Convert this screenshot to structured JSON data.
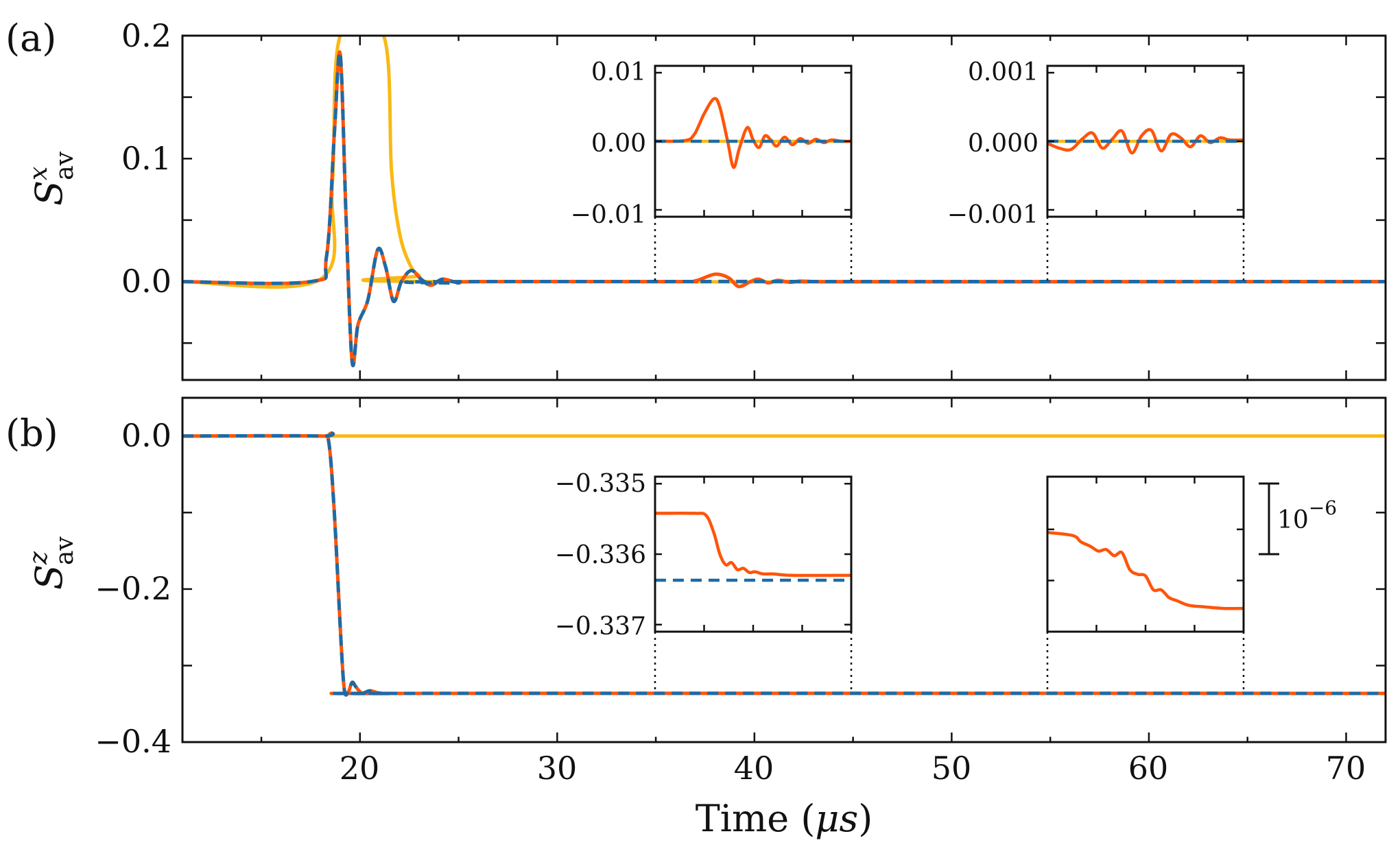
{
  "colors": {
    "yellow": "#F9B914",
    "orange": "#FF5409",
    "blue": "#1F6AA5",
    "axis": "#111111"
  },
  "x_axis": {
    "label_text": "Time (",
    "label_unit": "μs",
    "label_close": ")",
    "ticks": [
      "20",
      "30",
      "40",
      "50",
      "60",
      "70"
    ]
  },
  "panels": {
    "a": {
      "label": "(a)",
      "ylabel_base": "S",
      "ylabel_sup": "x",
      "ylabel_sub": "av",
      "yticks": [
        "0.2",
        "0.1",
        "0.0"
      ],
      "inset1_yticks": [
        "0.01",
        "0.00",
        "−0.01"
      ],
      "inset2_yticks": [
        "0.001",
        "0.000",
        "−0.001"
      ]
    },
    "b": {
      "label": "(b)",
      "ylabel_base": "S",
      "ylabel_sup": "z",
      "ylabel_sub": "av",
      "yticks": [
        "0.0",
        "−0.2",
        "−0.4"
      ],
      "inset1_yticks": [
        "−0.335",
        "−0.336",
        "−0.337"
      ],
      "scale_bar_base": "10",
      "scale_bar_exp": "−6"
    }
  },
  "chart_data": [
    {
      "panel": "a",
      "type": "line",
      "xlabel": "Time (μs)",
      "ylabel": "S^x_av",
      "xlim": [
        11,
        72
      ],
      "ylim": [
        -0.08,
        0.2
      ],
      "xticks": [
        20,
        30,
        40,
        50,
        60,
        70
      ],
      "yticks": [
        0.0,
        0.1,
        0.2
      ],
      "series": [
        {
          "color": "#F9B914",
          "style": "solid",
          "x": [
            11,
            18,
            18.6,
            19.0,
            21.2,
            21.6,
            22.0,
            22.5,
            23,
            24,
            72
          ],
          "y": [
            0,
            0.002,
            0.08,
            0.2,
            0.2,
            0.09,
            0.04,
            0.015,
            0.005,
            0,
            0
          ]
        },
        {
          "color": "#FF5409",
          "style": "solid",
          "x": [
            11,
            17.5,
            18.3,
            18.7,
            19.0,
            19.3,
            19.6,
            19.9,
            20.4,
            20.9,
            21.3,
            21.7,
            22.1,
            22.6,
            23.1,
            23.6,
            24.2,
            25.0,
            26,
            36,
            37,
            38,
            38.7,
            39.2,
            39.8,
            40.2,
            40.7,
            41.2,
            41.8,
            42.3,
            43,
            44,
            72
          ],
          "y": [
            0,
            0.0,
            0.02,
            0.12,
            0.185,
            0.05,
            -0.065,
            -0.035,
            -0.015,
            0.026,
            0.012,
            -0.016,
            0.0,
            0.009,
            0.002,
            -0.003,
            0.002,
            -0.001,
            0,
            0,
            0.0006,
            0.006,
            0.003,
            -0.004,
            0.0,
            0.002,
            -0.001,
            0.001,
            -0.0006,
            0.0004,
            0,
            0,
            0
          ]
        },
        {
          "color": "#1F6AA5",
          "style": "dashed",
          "x": [
            11,
            17.5,
            18.3,
            18.7,
            19.0,
            19.3,
            19.6,
            19.9,
            20.4,
            20.9,
            21.3,
            21.7,
            22.1,
            22.6,
            23.1,
            23.6,
            24.2,
            25.0,
            26,
            72
          ],
          "y": [
            0,
            0.0,
            0.02,
            0.12,
            0.185,
            0.05,
            -0.065,
            -0.035,
            -0.015,
            0.026,
            0.012,
            -0.016,
            0.0,
            0.009,
            0.002,
            -0.003,
            0.002,
            -0.001,
            0,
            0
          ]
        }
      ],
      "insets": [
        {
          "xlim": [
            35,
            45
          ],
          "ylim": [
            -0.011,
            0.011
          ],
          "yticks": [
            -0.01,
            0.0,
            0.01
          ],
          "series": [
            {
              "color": "#F9B914",
              "style": "solid",
              "x": [
                35,
                45
              ],
              "y": [
                0,
                0
              ]
            },
            {
              "color": "#FF5409",
              "style": "solid",
              "x": [
                35,
                36.5,
                37.0,
                37.5,
                38.0,
                38.3,
                38.7,
                39.0,
                39.3,
                39.7,
                40.0,
                40.3,
                40.6,
                40.9,
                41.2,
                41.6,
                42.0,
                42.4,
                42.8,
                43.2,
                43.6,
                44.0,
                44.5,
                45
              ],
              "y": [
                0,
                0.0001,
                0.001,
                0.004,
                0.0062,
                0.005,
                0.0,
                -0.0038,
                -0.001,
                0.002,
                0.0002,
                -0.0009,
                0.0008,
                0.0002,
                -0.0007,
                0.0006,
                -0.0005,
                0.0004,
                -0.0003,
                0.0003,
                -0.0002,
                0.0002,
                0.0,
                0.0
              ]
            },
            {
              "color": "#1F6AA5",
              "style": "dashed",
              "x": [
                35,
                45
              ],
              "y": [
                0,
                0
              ]
            }
          ]
        },
        {
          "xlim": [
            55,
            65
          ],
          "ylim": [
            -0.0011,
            0.0011
          ],
          "yticks": [
            -0.001,
            0.0,
            0.001
          ],
          "series": [
            {
              "color": "#F9B914",
              "style": "solid",
              "x": [
                55,
                65
              ],
              "y": [
                0,
                0
              ]
            },
            {
              "color": "#FF5409",
              "style": "solid",
              "x": [
                55,
                55.6,
                56.2,
                56.8,
                57.3,
                57.8,
                58.3,
                58.8,
                59.3,
                59.8,
                60.3,
                60.8,
                61.3,
                61.8,
                62.3,
                62.8,
                63.3,
                63.8,
                64.3,
                65
              ],
              "y": [
                -3e-05,
                -0.0001,
                -0.00012,
                4e-05,
                0.00012,
                -0.0001,
                3e-05,
                0.00015,
                -0.00017,
                8e-05,
                0.00016,
                -0.00014,
                0.0001,
                5e-05,
                -8e-05,
                8e-05,
                -2e-05,
                5e-05,
                2e-05,
                2e-05
              ]
            },
            {
              "color": "#1F6AA5",
              "style": "dashed",
              "x": [
                55,
                65
              ],
              "y": [
                0,
                0
              ]
            }
          ]
        }
      ]
    },
    {
      "panel": "b",
      "type": "line",
      "xlabel": "Time (μs)",
      "ylabel": "S^z_av",
      "xlim": [
        11,
        72
      ],
      "ylim": [
        -0.4,
        0.05
      ],
      "xticks": [
        20,
        30,
        40,
        50,
        60,
        70
      ],
      "yticks": [
        -0.4,
        -0.2,
        0.0
      ],
      "series": [
        {
          "color": "#F9B914",
          "style": "solid",
          "x": [
            11,
            72
          ],
          "y": [
            0,
            0
          ]
        },
        {
          "color": "#FF5409",
          "style": "solid",
          "x": [
            11,
            18.0,
            18.4,
            18.7,
            19.0,
            19.2,
            19.4,
            19.6,
            19.8,
            20.1,
            20.5,
            21.0,
            21.5,
            22.5,
            72
          ],
          "y": [
            0,
            0,
            -0.005,
            -0.1,
            -0.25,
            -0.33,
            -0.335,
            -0.322,
            -0.328,
            -0.336,
            -0.333,
            -0.336,
            -0.3365,
            -0.3363,
            -0.3363
          ]
        },
        {
          "color": "#1F6AA5",
          "style": "dashed",
          "x": [
            11,
            18.0,
            18.4,
            18.7,
            19.0,
            19.2,
            19.4,
            19.6,
            19.8,
            20.1,
            20.5,
            21.0,
            21.5,
            22.5,
            72
          ],
          "y": [
            0,
            0,
            -0.005,
            -0.1,
            -0.25,
            -0.33,
            -0.335,
            -0.322,
            -0.328,
            -0.336,
            -0.333,
            -0.336,
            -0.3365,
            -0.3363,
            -0.3363
          ]
        }
      ],
      "insets": [
        {
          "xlim": [
            35,
            45
          ],
          "ylim": [
            -0.3371,
            -0.3349
          ],
          "yticks": [
            -0.337,
            -0.336,
            -0.335
          ],
          "series": [
            {
              "color": "#FF5409",
              "style": "solid",
              "x": [
                35,
                37.0,
                37.6,
                38.0,
                38.3,
                38.6,
                38.9,
                39.2,
                39.5,
                39.8,
                40.1,
                40.5,
                41.0,
                42,
                45
              ],
              "y": [
                -0.33542,
                -0.33542,
                -0.33545,
                -0.3357,
                -0.336,
                -0.33615,
                -0.33612,
                -0.33622,
                -0.3362,
                -0.33626,
                -0.33625,
                -0.33628,
                -0.33628,
                -0.3363,
                -0.3363
              ]
            },
            {
              "color": "#1F6AA5",
              "style": "dashed",
              "x": [
                35,
                45
              ],
              "y": [
                -0.33637,
                -0.33637
              ]
            }
          ]
        },
        {
          "xlim": [
            55,
            65
          ],
          "ylim": [
            0,
            1
          ],
          "scale_bar": "10^-6",
          "series": [
            {
              "color": "#FF5409",
              "style": "solid",
              "x": [
                55,
                56.3,
                56.7,
                57.2,
                57.6,
                58.0,
                58.4,
                58.8,
                59.2,
                59.6,
                60.0,
                60.4,
                60.8,
                61.2,
                61.6,
                62.2,
                63,
                64,
                65
              ],
              "y": [
                0.64,
                0.62,
                0.58,
                0.55,
                0.52,
                0.53,
                0.49,
                0.51,
                0.4,
                0.37,
                0.36,
                0.27,
                0.27,
                0.22,
                0.2,
                0.17,
                0.16,
                0.15,
                0.15
              ]
            }
          ]
        }
      ]
    }
  ]
}
